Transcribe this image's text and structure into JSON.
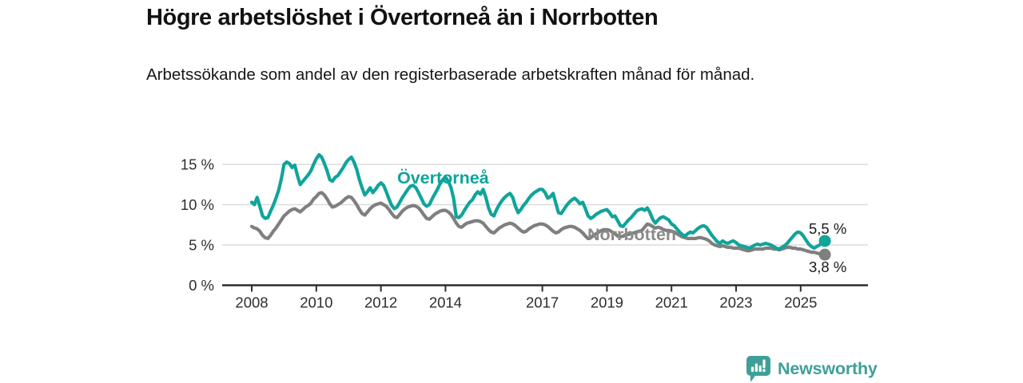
{
  "header": {
    "title": "Högre arbetslöshet i Övertorneå än i Norrbotten",
    "subtitle": "Arbetssökande som andel av den registerbaserade arbetskraften månad för månad."
  },
  "colors": {
    "overtornea": "#10a49a",
    "norrbotten": "#7f7f7f",
    "norrbotten_label": "#8a8a8a",
    "grid": "#dcdcdc",
    "axis": "#2d2d2d",
    "tick_text": "#2d2d2d",
    "value_text": "#1a1a1a",
    "brand": "#3f9f99"
  },
  "chart_data": {
    "type": "line",
    "title": "Högre arbetslöshet i Övertorneå än i Norrbotten",
    "subtitle": "Arbetssökande som andel av den registerbaserade arbetskraften månad för månad.",
    "unit": "%",
    "frequency": "monthly",
    "x_start": "2008-01",
    "x_end": "2025-10",
    "x_tick_years": [
      2008,
      2010,
      2012,
      2014,
      2017,
      2019,
      2021,
      2023,
      2025
    ],
    "y_ticks": [
      {
        "value": 0,
        "label": "0 %"
      },
      {
        "value": 5,
        "label": "5 %"
      },
      {
        "value": 10,
        "label": "10 %"
      },
      {
        "value": 15,
        "label": "15 %"
      }
    ],
    "ylim": [
      0,
      17
    ],
    "grid": true,
    "legend_position": "inline-labels",
    "series": [
      {
        "name": "Övertorneå",
        "end_label": "5,5 %",
        "last_value": 5.5,
        "values": [
          10.3,
          10.0,
          10.9,
          9.8,
          8.6,
          8.3,
          8.4,
          9.2,
          9.9,
          10.8,
          11.8,
          13.2,
          15.0,
          15.3,
          15.1,
          14.6,
          14.9,
          13.6,
          12.5,
          12.9,
          13.3,
          13.7,
          14.2,
          15.0,
          15.7,
          16.2,
          15.9,
          15.1,
          14.2,
          13.1,
          12.9,
          13.4,
          13.6,
          14.1,
          14.6,
          15.2,
          15.6,
          15.9,
          15.3,
          14.4,
          13.1,
          12.1,
          11.2,
          11.6,
          12.1,
          11.5,
          11.9,
          12.4,
          12.7,
          12.4,
          11.6,
          10.7,
          9.9,
          9.5,
          9.7,
          10.3,
          10.9,
          11.4,
          11.9,
          12.3,
          12.4,
          12.1,
          11.5,
          10.8,
          10.1,
          9.8,
          10.0,
          10.7,
          11.3,
          11.9,
          12.6,
          13.1,
          13.4,
          12.9,
          12.2,
          10.8,
          8.5,
          8.4,
          8.7,
          9.3,
          9.8,
          10.3,
          10.6,
          11.2,
          11.6,
          11.3,
          11.9,
          10.9,
          9.6,
          8.8,
          8.6,
          9.4,
          10.0,
          10.5,
          10.9,
          11.2,
          11.4,
          10.9,
          9.8,
          9.0,
          9.4,
          9.9,
          10.3,
          10.8,
          11.2,
          11.5,
          11.7,
          11.9,
          11.9,
          11.5,
          10.8,
          11.0,
          11.4,
          10.2,
          9.0,
          8.9,
          9.4,
          9.9,
          10.3,
          10.6,
          10.8,
          10.5,
          10.1,
          10.3,
          9.5,
          8.6,
          8.3,
          8.5,
          8.8,
          9.0,
          9.2,
          9.3,
          9.4,
          9.0,
          8.5,
          8.6,
          8.0,
          7.4,
          7.3,
          7.7,
          8.1,
          8.4,
          8.8,
          9.2,
          9.4,
          9.5,
          9.3,
          9.6,
          9.0,
          8.2,
          7.7,
          8.1,
          8.4,
          8.5,
          8.3,
          8.1,
          7.6,
          7.4,
          7.0,
          6.6,
          6.3,
          6.1,
          6.4,
          6.6,
          6.5,
          6.8,
          7.1,
          7.3,
          7.4,
          7.2,
          6.7,
          6.2,
          5.8,
          5.4,
          5.2,
          5.5,
          5.3,
          5.2,
          5.4,
          5.5,
          5.3,
          5.0,
          4.9,
          4.8,
          4.7,
          4.6,
          4.8,
          5.0,
          5.1,
          5.0,
          5.1,
          5.2,
          5.1,
          5.0,
          4.8,
          4.6,
          4.5,
          4.7,
          4.9,
          5.2,
          5.6,
          6.0,
          6.4,
          6.6,
          6.5,
          6.1,
          5.6,
          5.1,
          4.8,
          4.6,
          4.8,
          5.0,
          5.2,
          5.5
        ]
      },
      {
        "name": "Norrbotten",
        "end_label": "3,8 %",
        "last_value": 3.8,
        "values": [
          7.3,
          7.1,
          7.0,
          6.7,
          6.2,
          5.9,
          5.8,
          6.2,
          6.7,
          7.1,
          7.6,
          8.1,
          8.6,
          8.9,
          9.2,
          9.4,
          9.5,
          9.3,
          9.1,
          9.4,
          9.7,
          9.9,
          10.2,
          10.7,
          11.0,
          11.4,
          11.5,
          11.2,
          10.7,
          10.1,
          9.7,
          9.8,
          10.0,
          10.2,
          10.5,
          10.8,
          11.0,
          10.9,
          10.5,
          10.0,
          9.4,
          8.9,
          8.7,
          9.1,
          9.5,
          9.8,
          10.0,
          10.1,
          10.2,
          10.0,
          9.8,
          9.4,
          8.9,
          8.5,
          8.4,
          8.8,
          9.2,
          9.5,
          9.7,
          9.8,
          9.9,
          9.8,
          9.6,
          9.2,
          8.7,
          8.3,
          8.2,
          8.5,
          8.8,
          9.0,
          9.2,
          9.3,
          9.3,
          9.1,
          8.8,
          8.3,
          7.7,
          7.3,
          7.2,
          7.5,
          7.7,
          7.8,
          7.9,
          8.0,
          8.0,
          7.9,
          7.7,
          7.3,
          6.9,
          6.6,
          6.5,
          6.8,
          7.1,
          7.3,
          7.5,
          7.6,
          7.7,
          7.6,
          7.4,
          7.1,
          6.8,
          6.6,
          6.7,
          7.0,
          7.2,
          7.4,
          7.5,
          7.6,
          7.6,
          7.5,
          7.3,
          7.0,
          6.7,
          6.5,
          6.6,
          6.9,
          7.1,
          7.2,
          7.3,
          7.3,
          7.2,
          7.0,
          6.8,
          6.5,
          6.1,
          5.8,
          5.9,
          6.2,
          6.4,
          6.6,
          6.8,
          6.9,
          6.9,
          6.8,
          6.6,
          6.4,
          6.1,
          6.0,
          6.1,
          6.3,
          6.3,
          6.4,
          6.5,
          6.6,
          6.7,
          6.8,
          7.2,
          7.6,
          7.5,
          7.3,
          7.1,
          7.2,
          7.1,
          6.9,
          6.8,
          6.8,
          6.7,
          6.6,
          6.4,
          6.2,
          6.0,
          5.9,
          5.8,
          5.8,
          5.8,
          5.8,
          5.9,
          5.9,
          5.8,
          5.7,
          5.5,
          5.2,
          5.0,
          4.9,
          4.8,
          4.9,
          4.8,
          4.7,
          4.7,
          4.6,
          4.6,
          4.6,
          4.5,
          4.4,
          4.3,
          4.3,
          4.4,
          4.5,
          4.5,
          4.5,
          4.5,
          4.6,
          4.6,
          4.6,
          4.5,
          4.5,
          4.4,
          4.5,
          4.6,
          4.7,
          4.7,
          4.6,
          4.6,
          4.5,
          4.5,
          4.4,
          4.3,
          4.2,
          4.1,
          4.1,
          4.0,
          3.9,
          3.9,
          3.8
        ]
      }
    ]
  },
  "footer": {
    "brand": "Newsworthy"
  }
}
